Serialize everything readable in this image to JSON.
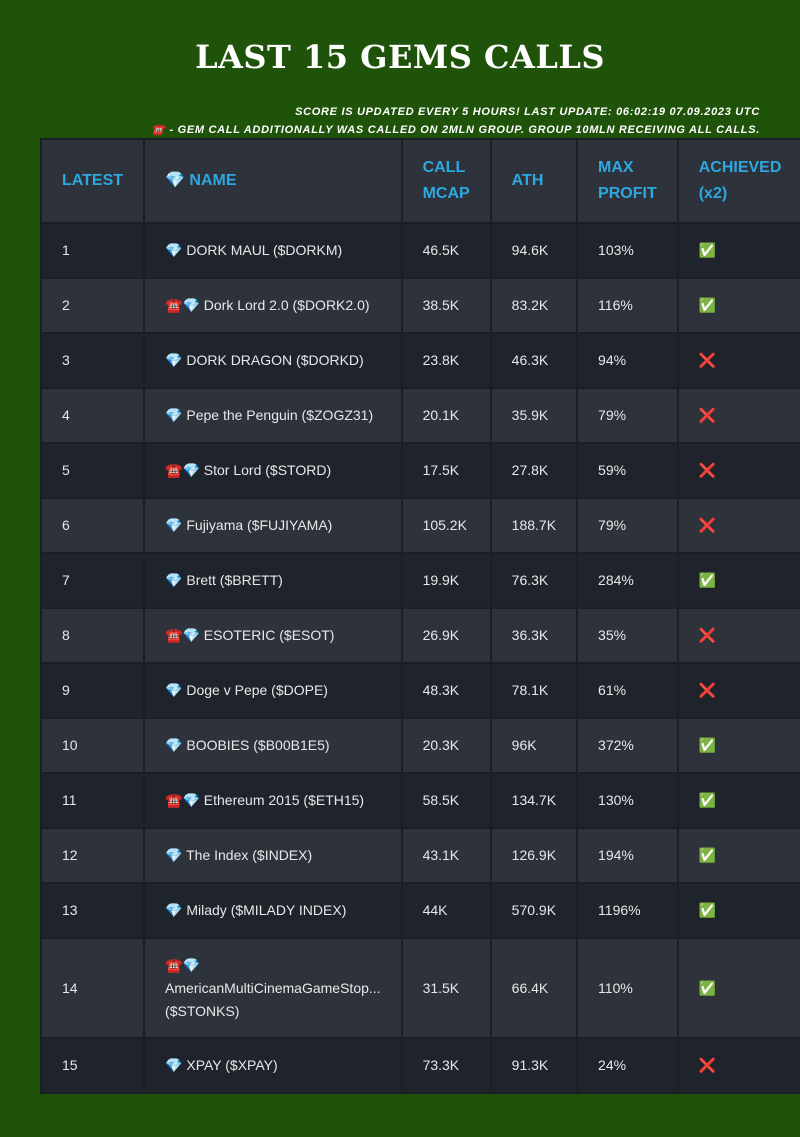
{
  "header": {
    "title": "LAST 15 GEMS CALLS",
    "notes": [
      "SCORE IS UPDATED EVERY 5 HOURS! LAST UPDATE: 06:02:19 07.09.2023 UTC",
      "☎️ - GEM CALL ADDITIONALLY WAS CALLED ON 2MLN GROUP. GROUP 10MLN RECEIVING ALL CALLS."
    ]
  },
  "table": {
    "columns": [
      "LATEST",
      "💎 NAME",
      "CALL MCAP",
      "ATH",
      "MAX PROFIT",
      "ACHIEVED (x2)"
    ],
    "rows": [
      [
        "1",
        "💎 DORK MAUL ($DORKM)",
        "46.5K",
        "94.6K",
        "103%",
        "✅"
      ],
      [
        "2",
        "☎️💎 Dork Lord 2.0 ($DORK2.0)",
        "38.5K",
        "83.2K",
        "116%",
        "✅"
      ],
      [
        "3",
        "💎 DORK DRAGON ($DORKD)",
        "23.8K",
        "46.3K",
        "94%",
        "❌"
      ],
      [
        "4",
        "💎 Pepe the Penguin ($ZOGZ31)",
        "20.1K",
        "35.9K",
        "79%",
        "❌"
      ],
      [
        "5",
        "☎️💎 Stor Lord ($STORD)",
        "17.5K",
        "27.8K",
        "59%",
        "❌"
      ],
      [
        "6",
        "💎 Fujiyama ($FUJIYAMA)",
        "105.2K",
        "188.7K",
        "79%",
        "❌"
      ],
      [
        "7",
        "💎 Brett ($BRETT)",
        "19.9K",
        "76.3K",
        "284%",
        "✅"
      ],
      [
        "8",
        "☎️💎 ESOTERIC ($ESOT)",
        "26.9K",
        "36.3K",
        "35%",
        "❌"
      ],
      [
        "9",
        "💎 Doge v Pepe ($DOPE)",
        "48.3K",
        "78.1K",
        "61%",
        "❌"
      ],
      [
        "10",
        "💎 BOOBIES ($B00B1E5)",
        "20.3K",
        "96K",
        "372%",
        "✅"
      ],
      [
        "11",
        "☎️💎 Ethereum 2015 ($ETH15)",
        "58.5K",
        "134.7K",
        "130%",
        "✅"
      ],
      [
        "12",
        "💎 The Index ($INDEX)",
        "43.1K",
        "126.9K",
        "194%",
        "✅"
      ],
      [
        "13",
        "💎 Milady ($MILADY INDEX)",
        "44K",
        "570.9K",
        "1196%",
        "✅"
      ],
      [
        "14",
        "☎️💎 AmericanMultiCinemaGameStop... ($STONKS)",
        "31.5K",
        "66.4K",
        "110%",
        "✅"
      ],
      [
        "15",
        "💎 XPAY ($XPAY)",
        "73.3K",
        "91.3K",
        "24%",
        "❌"
      ]
    ]
  }
}
